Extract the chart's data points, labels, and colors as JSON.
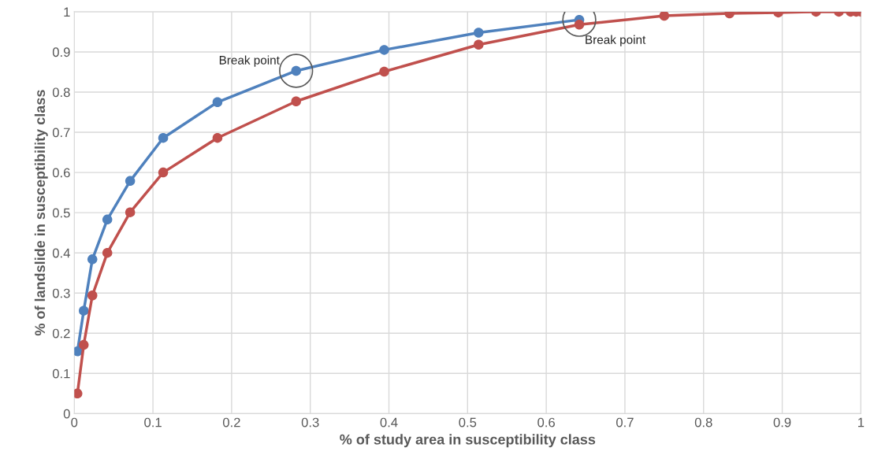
{
  "chart_data": {
    "type": "line",
    "xlabel": "% of study area in susceptibility class",
    "ylabel": "% of landslide in susceptibility class",
    "x": [
      0.004,
      0.012,
      0.023,
      0.042,
      0.071,
      0.113,
      0.182,
      0.282,
      0.394,
      0.514,
      0.642,
      0.75,
      0.833,
      0.895,
      0.943,
      0.972,
      0.987,
      0.994,
      1.0
    ],
    "series": [
      {
        "color": "#4f81bd",
        "values": [
          0.155,
          0.256,
          0.384,
          0.483,
          0.579,
          0.686,
          0.775,
          0.853,
          0.905,
          0.948,
          0.98,
          null,
          null,
          null,
          null,
          null,
          null,
          null,
          null
        ]
      },
      {
        "color": "#c0504d",
        "values": [
          0.05,
          0.171,
          0.294,
          0.4,
          0.501,
          0.6,
          0.686,
          0.777,
          0.851,
          0.918,
          0.968,
          0.99,
          0.996,
          0.998,
          1.0,
          1.0,
          1.0,
          1.0,
          1.0
        ]
      }
    ],
    "annotations": [
      {
        "text": "Break point",
        "x": 0.282,
        "y": 0.853
      },
      {
        "text": "Break point",
        "x": 0.642,
        "y": 0.98
      }
    ],
    "xlim": [
      0,
      1
    ],
    "ylim": [
      0,
      1
    ],
    "xticks": [
      0,
      0.1,
      0.2,
      0.3,
      0.4,
      0.5,
      0.6,
      0.7,
      0.8,
      0.9,
      1
    ],
    "yticks": [
      0,
      0.1,
      0.2,
      0.3,
      0.4,
      0.5,
      0.6,
      0.7,
      0.8,
      0.9,
      1
    ],
    "grid": true,
    "marker": "circle",
    "line_style": "solid"
  }
}
